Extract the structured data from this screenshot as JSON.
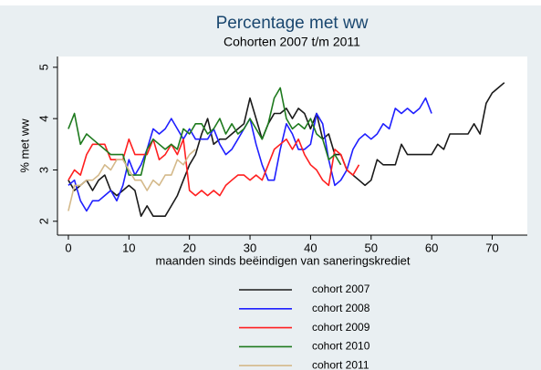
{
  "chart_data": {
    "type": "line",
    "title": "Percentage met ww",
    "subtitle": "Cohorten 2007 t/m 2011",
    "x_label": "maanden sinds beëindigen van saneringskrediet",
    "y_label": "% met ww",
    "x": [
      0,
      1,
      2,
      3,
      4,
      5,
      6,
      7,
      8,
      9,
      10,
      11,
      12,
      13,
      14,
      15,
      16,
      17,
      18,
      19,
      20,
      21,
      22,
      23,
      24,
      25,
      26,
      27,
      28,
      29,
      30,
      31,
      32,
      33,
      34,
      35,
      36,
      37,
      38,
      39,
      40,
      41,
      42,
      43,
      44,
      45,
      46,
      47,
      48,
      49,
      50,
      51,
      52,
      53,
      54,
      55,
      56,
      57,
      58,
      59,
      60,
      61,
      62,
      63,
      64,
      65,
      66,
      67,
      68,
      69,
      70,
      71,
      72
    ],
    "series": [
      {
        "name": "cohort 2007",
        "color": "#1a1a1a",
        "values": [
          2.8,
          2.6,
          2.7,
          2.8,
          2.6,
          2.8,
          2.9,
          2.6,
          2.5,
          2.6,
          2.7,
          2.6,
          2.1,
          2.3,
          2.1,
          2.1,
          2.1,
          2.3,
          2.5,
          2.8,
          3.1,
          3.3,
          3.7,
          4.0,
          3.5,
          3.6,
          3.6,
          3.7,
          3.8,
          3.9,
          4.4,
          4.0,
          3.6,
          3.9,
          4.1,
          4.1,
          4.2,
          4.0,
          4.2,
          4.1,
          3.8,
          4.1,
          3.6,
          3.7,
          3.3,
          3.3,
          3.0,
          2.9,
          2.8,
          2.7,
          2.8,
          3.2,
          3.1,
          3.1,
          3.1,
          3.5,
          3.3,
          3.3,
          3.3,
          3.3,
          3.3,
          3.5,
          3.4,
          3.7,
          3.7,
          3.7,
          3.7,
          3.9,
          3.7,
          4.3,
          4.5,
          4.6,
          4.7
        ]
      },
      {
        "name": "cohort 2008",
        "color": "#1f1fff",
        "values": [
          2.7,
          2.8,
          2.4,
          2.2,
          2.4,
          2.4,
          2.5,
          2.6,
          2.4,
          2.7,
          3.2,
          2.9,
          3.1,
          3.4,
          3.8,
          3.7,
          3.8,
          4.0,
          3.8,
          3.6,
          3.8,
          3.6,
          3.6,
          3.6,
          3.8,
          3.5,
          3.3,
          3.4,
          3.6,
          3.8,
          4.0,
          3.5,
          3.1,
          2.8,
          2.8,
          3.4,
          3.9,
          3.7,
          3.4,
          3.4,
          3.5,
          4.1,
          3.9,
          3.2,
          2.7,
          2.8,
          3.0,
          3.4,
          3.6,
          3.7,
          3.6,
          3.7,
          3.9,
          3.8,
          4.2,
          4.1,
          4.2,
          4.1,
          4.2,
          4.4,
          4.1,
          null,
          null,
          null,
          null,
          null,
          null,
          null,
          null,
          null,
          null,
          null,
          null
        ]
      },
      {
        "name": "cohort 2009",
        "color": "#ff1f1f",
        "values": [
          2.8,
          3.0,
          2.9,
          3.3,
          3.5,
          3.5,
          3.5,
          3.2,
          3.2,
          3.2,
          3.6,
          3.3,
          3.3,
          3.3,
          3.6,
          3.2,
          3.3,
          3.5,
          3.3,
          3.6,
          2.6,
          2.5,
          2.6,
          2.5,
          2.6,
          2.5,
          2.7,
          2.8,
          2.9,
          2.9,
          2.8,
          2.9,
          2.8,
          3.1,
          3.4,
          3.5,
          3.6,
          3.4,
          3.6,
          3.3,
          3.1,
          3.0,
          2.8,
          2.7,
          3.4,
          3.3,
          3.0,
          2.9,
          3.1,
          null,
          null,
          null,
          null,
          null,
          null,
          null,
          null,
          null,
          null,
          null,
          null,
          null,
          null,
          null,
          null,
          null,
          null,
          null,
          null,
          null,
          null,
          null,
          null
        ]
      },
      {
        "name": "cohort 2010",
        "color": "#1e7a1e",
        "values": [
          3.8,
          4.1,
          3.5,
          3.7,
          3.6,
          3.5,
          3.4,
          3.3,
          3.3,
          3.3,
          2.9,
          2.9,
          2.9,
          3.4,
          3.6,
          3.5,
          3.4,
          3.5,
          3.4,
          3.8,
          3.7,
          3.9,
          3.9,
          3.7,
          3.8,
          4.0,
          3.7,
          3.9,
          3.7,
          3.8,
          4.0,
          3.8,
          3.6,
          3.9,
          4.4,
          4.6,
          4.0,
          3.8,
          3.9,
          3.8,
          4.0,
          3.7,
          3.6,
          3.2,
          3.3,
          3.1,
          null,
          null,
          null,
          null,
          null,
          null,
          null,
          null,
          null,
          null,
          null,
          null,
          null,
          null,
          null,
          null,
          null,
          null,
          null,
          null,
          null,
          null,
          null,
          null,
          null,
          null,
          null
        ]
      },
      {
        "name": "cohort 2011",
        "color": "#d4b98a",
        "values": [
          2.2,
          2.7,
          2.7,
          2.8,
          2.8,
          2.9,
          3.1,
          3.0,
          3.2,
          3.2,
          3.0,
          2.8,
          2.8,
          2.6,
          2.8,
          2.7,
          2.9,
          2.9,
          3.2,
          3.1,
          3.3,
          3.4,
          null,
          null,
          null,
          null,
          null,
          null,
          null,
          null,
          null,
          null,
          null,
          null,
          null,
          null,
          null,
          null,
          null,
          null,
          null,
          null,
          null,
          null,
          null,
          null,
          null,
          null,
          null,
          null,
          null,
          null,
          null,
          null,
          null,
          null,
          null,
          null,
          null,
          null,
          null,
          null,
          null,
          null,
          null,
          null,
          null,
          null,
          null,
          null,
          null,
          null,
          null
        ]
      }
    ],
    "xlim": [
      -1.8,
      75.8
    ],
    "xticks": [
      0,
      10,
      20,
      30,
      40,
      50,
      60,
      70
    ],
    "ylim": [
      1.73,
      5.21
    ],
    "yticks": [
      2,
      3,
      4,
      5
    ],
    "grid": false
  }
}
